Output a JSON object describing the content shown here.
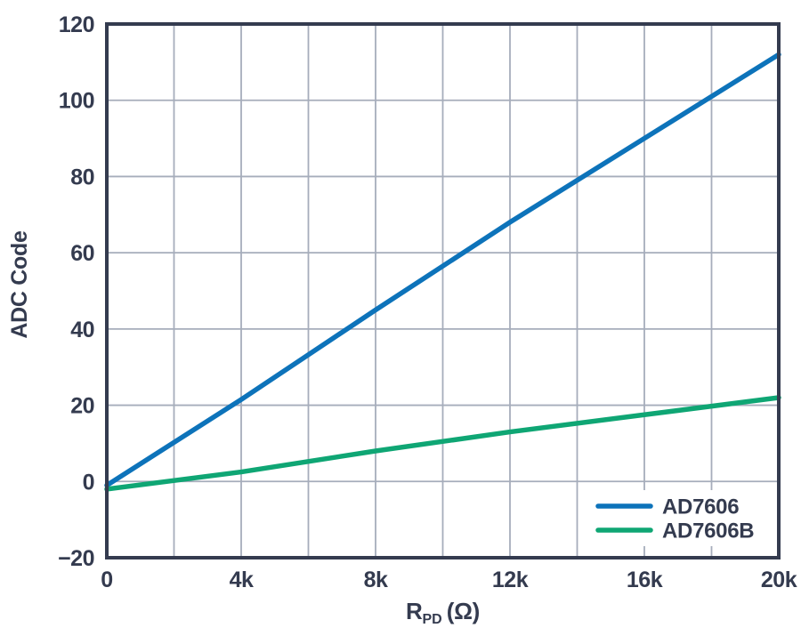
{
  "styles": {
    "background": "#ffffff",
    "axis_color": "#343b4f",
    "text_color": "#343b4f",
    "grid_color": "#a6adbb",
    "legend_background": "#ffffff"
  },
  "chart_data": {
    "type": "line",
    "title": "",
    "xlabel": "RPD (Ω)",
    "xlabel_parts": {
      "symbol": "R",
      "subscript": "PD",
      "unit": "(Ω)"
    },
    "ylabel": "ADC Code",
    "xlim": [
      0,
      20000
    ],
    "ylim": [
      -20,
      120
    ],
    "x_grid_step": 2000,
    "y_grid_step": 20,
    "grid": true,
    "legend_position": "bottom-right",
    "x_ticks": [
      {
        "value": 0,
        "label": "0"
      },
      {
        "value": 4000,
        "label": "4k"
      },
      {
        "value": 8000,
        "label": "8k"
      },
      {
        "value": 12000,
        "label": "12k"
      },
      {
        "value": 16000,
        "label": "16k"
      },
      {
        "value": 20000,
        "label": "20k"
      }
    ],
    "y_ticks": [
      {
        "value": 120,
        "label": "120"
      },
      {
        "value": 100,
        "label": "100"
      },
      {
        "value": 80,
        "label": "80"
      },
      {
        "value": 60,
        "label": "60"
      },
      {
        "value": 40,
        "label": "40"
      },
      {
        "value": 20,
        "label": "20"
      },
      {
        "value": 0,
        "label": "0"
      },
      {
        "value": -20,
        "label": "−20"
      }
    ],
    "series": [
      {
        "name": "AD7606",
        "color": "#0d73ba",
        "x": [
          0,
          4000,
          8000,
          12000,
          16000,
          20000
        ],
        "y": [
          -1,
          21.5,
          45,
          68,
          90,
          112
        ]
      },
      {
        "name": "AD7606B",
        "color": "#0fa674",
        "x": [
          0,
          4000,
          8000,
          12000,
          16000,
          20000
        ],
        "y": [
          -2,
          2.5,
          8,
          13,
          17.5,
          22
        ]
      }
    ]
  }
}
